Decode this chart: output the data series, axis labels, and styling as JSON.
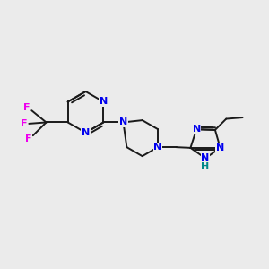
{
  "background_color": "#EBEBEB",
  "bond_color": "#1a1a1a",
  "bond_width": 1.4,
  "N_color": "#0000EE",
  "F_color": "#EE00EE",
  "NH_color": "#008888",
  "figsize": [
    3.0,
    3.0
  ],
  "dpi": 100,
  "xlim": [
    0,
    10
  ],
  "ylim": [
    0,
    10
  ]
}
